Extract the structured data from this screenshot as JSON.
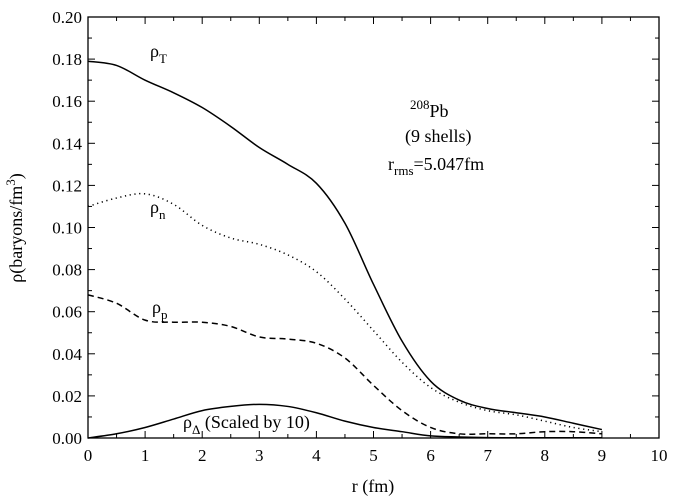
{
  "chart_data": {
    "type": "line",
    "xlabel": "r (fm)",
    "ylabel": "ρ(baryons/fm³)",
    "ylabel_parts": {
      "main": "ρ(baryons/fm",
      "sup": "3",
      "close": ")"
    },
    "xlim": [
      0,
      10
    ],
    "ylim": [
      0,
      0.2
    ],
    "x_ticks": [
      0,
      1,
      2,
      3,
      4,
      5,
      6,
      7,
      8,
      9,
      10
    ],
    "x_tick_labels": [
      "0",
      "1",
      "2",
      "3",
      "4",
      "5",
      "6",
      "7",
      "8",
      "9",
      "10"
    ],
    "y_ticks": [
      0,
      0.02,
      0.04,
      0.06,
      0.08,
      0.1,
      0.12,
      0.14,
      0.16,
      0.18,
      0.2
    ],
    "y_tick_labels": [
      "0.00",
      "0.02",
      "0.04",
      "0.06",
      "0.08",
      "0.10",
      "0.12",
      "0.14",
      "0.16",
      "0.18",
      "0.20"
    ],
    "grid": false,
    "legend": "none",
    "annotation": {
      "nucleus_mass": "208",
      "nucleus_symbol": "Pb",
      "shells": "(9 shells)",
      "rms_symbol": "r",
      "rms_sub": "rms",
      "rms_value": "=5.047fm"
    },
    "series": [
      {
        "name": "ρT",
        "label_main": "ρ",
        "label_sub": "T",
        "style": "solid",
        "x": [
          0,
          0.5,
          1,
          1.5,
          2,
          2.5,
          3,
          3.5,
          4,
          4.5,
          5,
          5.5,
          6,
          6.5,
          7,
          7.5,
          8,
          8.5,
          9
        ],
        "y": [
          0.179,
          0.177,
          0.17,
          0.164,
          0.157,
          0.148,
          0.138,
          0.13,
          0.121,
          0.102,
          0.073,
          0.046,
          0.027,
          0.018,
          0.014,
          0.012,
          0.01,
          0.007,
          0.004
        ]
      },
      {
        "name": "ρn",
        "label_main": "ρ",
        "label_sub": "n",
        "style": "dotted",
        "x": [
          0,
          0.5,
          1,
          1.5,
          2,
          2.5,
          3,
          3.5,
          4,
          4.5,
          5,
          5.5,
          6,
          6.5,
          7,
          7.5,
          8,
          8.5,
          9
        ],
        "y": [
          0.11,
          0.114,
          0.116,
          0.111,
          0.101,
          0.095,
          0.092,
          0.087,
          0.079,
          0.066,
          0.051,
          0.036,
          0.024,
          0.017,
          0.013,
          0.011,
          0.008,
          0.005,
          0.003
        ]
      },
      {
        "name": "ρp",
        "label_main": "ρ",
        "label_sub": "p",
        "style": "dashed",
        "x": [
          0,
          0.5,
          1,
          1.5,
          2,
          2.5,
          3,
          3.5,
          4,
          4.5,
          5,
          5.5,
          6,
          6.5,
          7,
          7.5,
          8,
          8.5,
          9
        ],
        "y": [
          0.068,
          0.064,
          0.056,
          0.055,
          0.055,
          0.053,
          0.048,
          0.047,
          0.045,
          0.038,
          0.025,
          0.013,
          0.005,
          0.002,
          0.002,
          0.002,
          0.003,
          0.003,
          0.002
        ]
      },
      {
        "name": "ρΔ (Scaled by 10)",
        "label_main": "ρ",
        "label_sub": "Δ",
        "label_note": "(Scaled by 10)",
        "style": "solid",
        "x": [
          0,
          0.5,
          1,
          1.5,
          2,
          2.5,
          3,
          3.5,
          4,
          4.5,
          5,
          5.5,
          6,
          6.5,
          7,
          7.5,
          8,
          8.5,
          9
        ],
        "y": [
          0.0,
          0.002,
          0.005,
          0.009,
          0.013,
          0.015,
          0.016,
          0.015,
          0.012,
          0.008,
          0.005,
          0.003,
          0.001,
          0.0005,
          0.0002,
          0.0001,
          0.0001,
          0.0001,
          0.0001
        ]
      }
    ]
  }
}
